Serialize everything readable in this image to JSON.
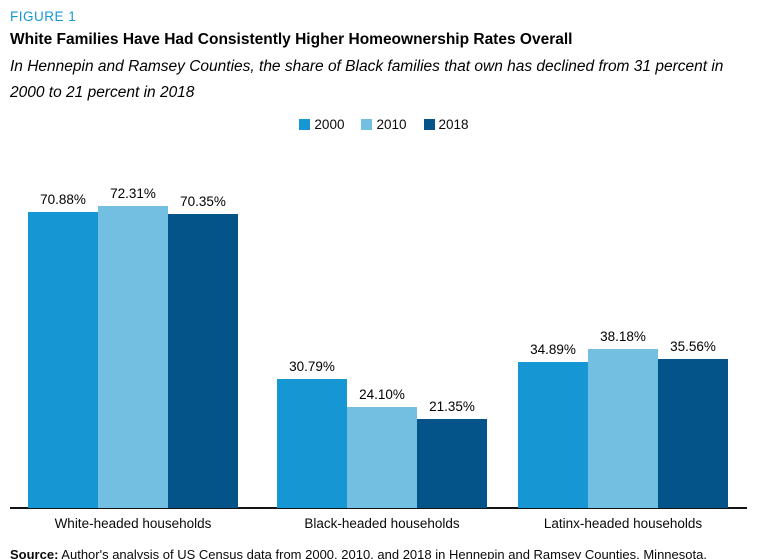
{
  "figure": {
    "label": "FIGURE 1",
    "title": "White Families Have Had Consistently Higher Homeownership Rates Overall",
    "subtitle": "In Hennepin and Ramsey Counties, the share of Black families that own has declined from 31 percent in 2000 to 21 percent in 2018"
  },
  "chart_data": {
    "type": "bar",
    "title": "White Families Have Had Consistently Higher Homeownership Rates Overall",
    "categories": [
      "White-headed households",
      "Black-headed households",
      "Latinx-headed households"
    ],
    "series": [
      {
        "name": "2000",
        "color": "#1696d2",
        "values": [
          70.88,
          30.79,
          34.89
        ]
      },
      {
        "name": "2010",
        "color": "#73bfe2",
        "values": [
          72.31,
          24.1,
          38.18
        ]
      },
      {
        "name": "2018",
        "color": "#04548a",
        "values": [
          70.35,
          21.35,
          35.56
        ]
      }
    ],
    "value_label_format": "0.00%",
    "ylim": [
      0,
      85.7
    ],
    "legend_position": "top-center",
    "grid": false,
    "y_axis_shown": false
  },
  "source_note": {
    "prefix": "Source:",
    "text": " Author's analysis of US Census data from 2000, 2010, and 2018 in Hennepin and Ramsey Counties, Minnesota."
  }
}
